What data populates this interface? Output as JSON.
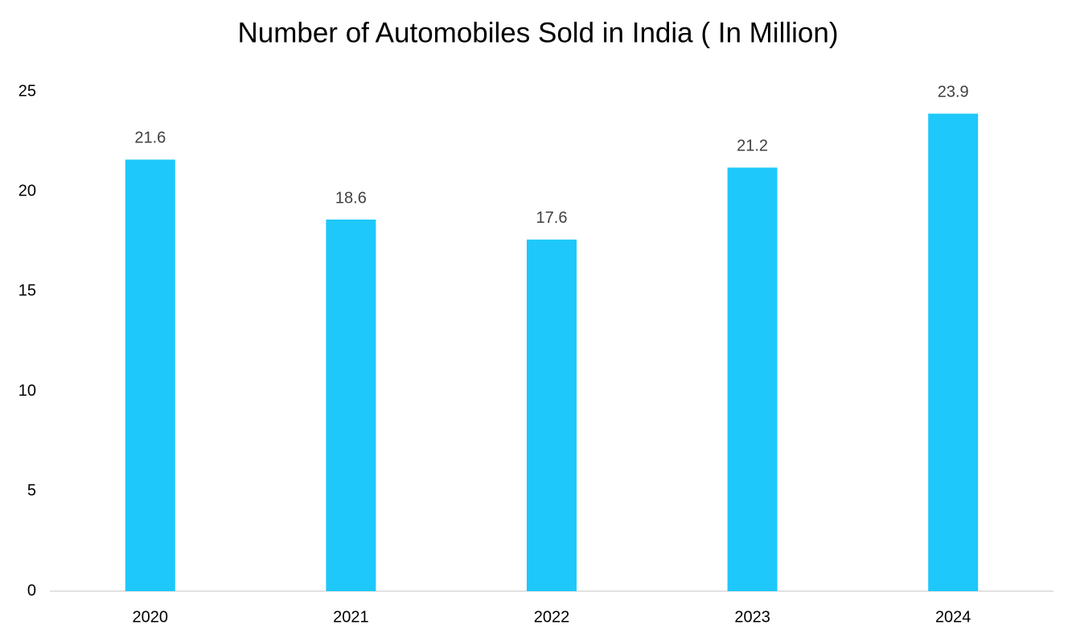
{
  "chart_data": {
    "type": "bar",
    "title": "Number of Automobiles Sold in India ( In Million)",
    "categories": [
      "2020",
      "2021",
      "2022",
      "2023",
      "2024"
    ],
    "values": [
      21.6,
      18.6,
      17.6,
      21.2,
      23.9
    ],
    "color": "#1ec8fa",
    "ylim": [
      0,
      25
    ],
    "yticks": [
      0,
      5,
      10,
      15,
      20,
      25
    ],
    "grid": false
  }
}
